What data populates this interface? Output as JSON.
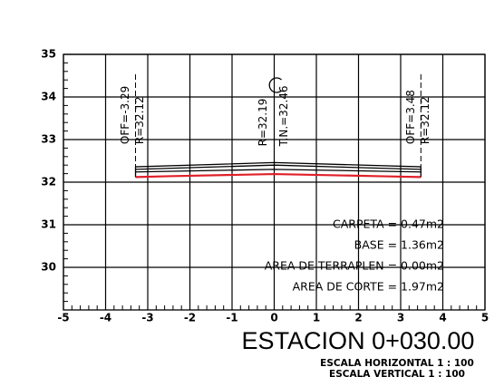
{
  "chart_data": {
    "type": "line",
    "title": "ESTACION 0+030.00",
    "subtitles": [
      "ESCALA HORIZONTAL 1 : 100",
      "ESCALA VERTICAL 1 : 100"
    ],
    "xlim": [
      -5,
      5
    ],
    "xticks": [
      -5,
      -4,
      -3,
      -2,
      -1,
      0,
      1,
      2,
      3,
      4,
      5
    ],
    "ylim": [
      29,
      35
    ],
    "yticks": [
      30,
      31,
      32,
      33,
      34,
      35
    ],
    "grid": true,
    "series": [
      {
        "color": "#000000",
        "x": [
          -3.29,
          0,
          3.48
        ],
        "values": [
          32.36,
          32.46,
          32.36
        ]
      },
      {
        "color": "#000000",
        "x": [
          -3.29,
          0,
          3.48
        ],
        "values": [
          32.3,
          32.4,
          32.3
        ]
      },
      {
        "color": "#000000",
        "x": [
          -3.29,
          0,
          3.48
        ],
        "values": [
          32.24,
          32.3,
          32.24
        ]
      },
      {
        "color": "#e0202a",
        "x": [
          -3.29,
          -2.5,
          0,
          2.5,
          3.48
        ],
        "values": [
          32.12,
          32.14,
          32.19,
          32.14,
          32.12
        ]
      }
    ],
    "annotations": [
      [
        "OFF=-3.29",
        "R=32.12"
      ],
      [
        "R=32.19",
        "T.N.=32.46"
      ],
      [
        "OFF=3.48",
        "R=32.12"
      ]
    ],
    "areas": [
      "CARPETA = 0.47m2",
      "BASE = 1.36m2",
      "AREA DE TERRAPLEN = 0.00m2",
      "AREA DE CORTE = 1.97m2"
    ]
  }
}
